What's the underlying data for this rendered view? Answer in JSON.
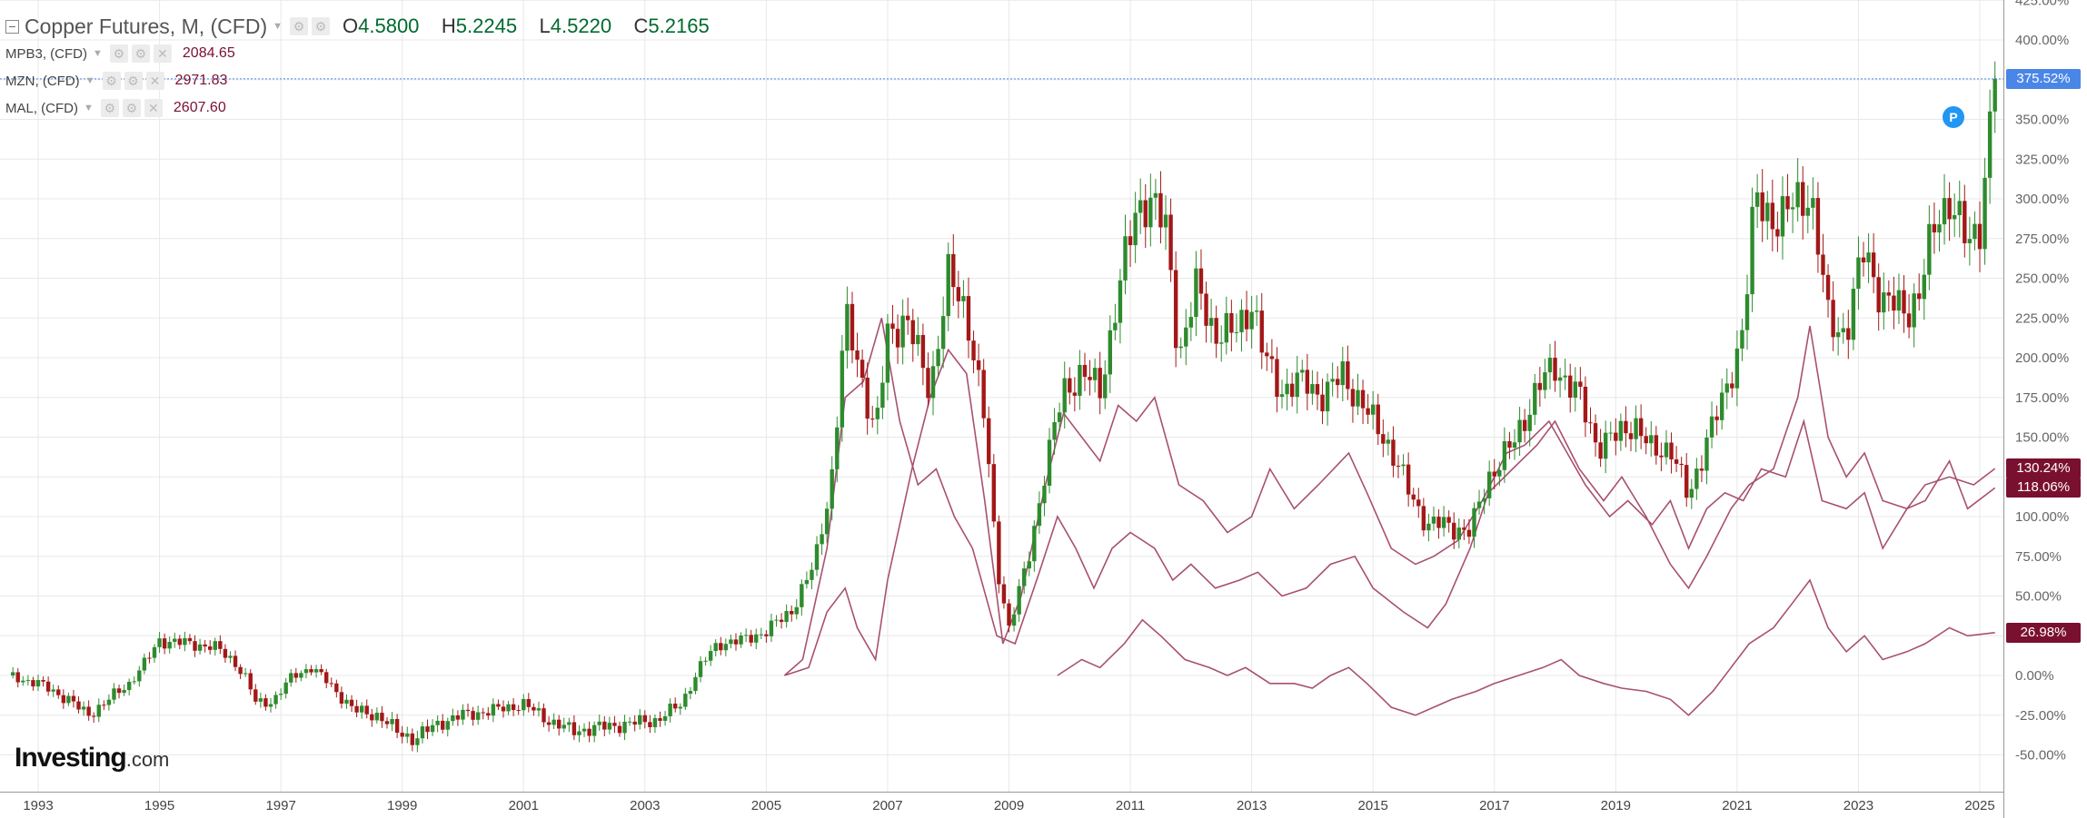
{
  "legend": {
    "main": {
      "symbol": "Copper Futures, M, (CFD)",
      "o_label": "O",
      "o": "4.5800",
      "h_label": "H",
      "h": "5.2245",
      "l_label": "L",
      "l": "4.5220",
      "c_label": "C",
      "c": "5.2165"
    },
    "series": [
      {
        "symbol": "MPB3, (CFD)",
        "value": "2084.65"
      },
      {
        "symbol": "MZN, (CFD)",
        "value": "2971.83"
      },
      {
        "symbol": "MAL, (CFD)",
        "value": "2607.60"
      }
    ]
  },
  "price_tags": [
    {
      "text": "375.52%",
      "value": 375.52,
      "color": "#4a86e8"
    },
    {
      "text": "130.24%",
      "value": 130.24,
      "color": "#7a1030"
    },
    {
      "text": "118.06%",
      "value": 118.06,
      "color": "#7a1030"
    },
    {
      "text": "26.98%",
      "value": 26.98,
      "color": "#7a1030"
    }
  ],
  "marker_label": "P",
  "logo": {
    "bold": "Investing",
    "suffix": ".com"
  },
  "colors": {
    "up": "#2e8b2e",
    "down": "#a31818",
    "compare_line": "#a85070",
    "grid": "#e8e8e8",
    "crosshair": "#4a86e8"
  },
  "chart_data": {
    "type": "candlestick with comparison lines",
    "y_unit": "percent change",
    "ylim": [
      -60,
      425
    ],
    "y_ticks": [
      -50,
      -25,
      0,
      25,
      50,
      75,
      100,
      125,
      150,
      175,
      200,
      225,
      250,
      275,
      300,
      325,
      350,
      375,
      400,
      425
    ],
    "x_ticks": [
      "1993",
      "1995",
      "1997",
      "1999",
      "2001",
      "2003",
      "2005",
      "2007",
      "2009",
      "2011",
      "2013",
      "2015",
      "2017",
      "2019",
      "2021",
      "2023",
      "2025"
    ],
    "grid": true,
    "main_series": {
      "name": "Copper Futures",
      "approx_close_percent": [
        [
          1992.5,
          0
        ],
        [
          1993.0,
          -5
        ],
        [
          1993.5,
          -15
        ],
        [
          1993.8,
          -25
        ],
        [
          1994.0,
          -20
        ],
        [
          1994.5,
          -5
        ],
        [
          1994.8,
          10
        ],
        [
          1995.0,
          22
        ],
        [
          1995.5,
          20
        ],
        [
          1995.9,
          18
        ],
        [
          1996.2,
          10
        ],
        [
          1996.4,
          0
        ],
        [
          1996.6,
          -18
        ],
        [
          1996.9,
          -15
        ],
        [
          1997.2,
          0
        ],
        [
          1997.5,
          5
        ],
        [
          1997.8,
          -5
        ],
        [
          1998.2,
          -22
        ],
        [
          1998.6,
          -25
        ],
        [
          1998.9,
          -35
        ],
        [
          1999.2,
          -40
        ],
        [
          1999.6,
          -30
        ],
        [
          2000.0,
          -25
        ],
        [
          2000.5,
          -22
        ],
        [
          2001.0,
          -18
        ],
        [
          2001.4,
          -28
        ],
        [
          2001.8,
          -35
        ],
        [
          2002.2,
          -33
        ],
        [
          2002.8,
          -30
        ],
        [
          2003.2,
          -28
        ],
        [
          2003.6,
          -18
        ],
        [
          2003.9,
          5
        ],
        [
          2004.2,
          20
        ],
        [
          2004.6,
          22
        ],
        [
          2005.0,
          28
        ],
        [
          2005.4,
          40
        ],
        [
          2005.8,
          70
        ],
        [
          2006.1,
          130
        ],
        [
          2006.3,
          225
        ],
        [
          2006.5,
          200
        ],
        [
          2006.8,
          150
        ],
        [
          2007.0,
          215
        ],
        [
          2007.3,
          225
        ],
        [
          2007.7,
          180
        ],
        [
          2008.0,
          250
        ],
        [
          2008.3,
          230
        ],
        [
          2008.6,
          160
        ],
        [
          2008.8,
          70
        ],
        [
          2009.0,
          30
        ],
        [
          2009.3,
          70
        ],
        [
          2009.6,
          130
        ],
        [
          2009.9,
          180
        ],
        [
          2010.2,
          190
        ],
        [
          2010.5,
          180
        ],
        [
          2010.8,
          240
        ],
        [
          2011.1,
          295
        ],
        [
          2011.3,
          300
        ],
        [
          2011.6,
          280
        ],
        [
          2011.8,
          200
        ],
        [
          2012.1,
          245
        ],
        [
          2012.4,
          215
        ],
        [
          2012.7,
          215
        ],
        [
          2013.0,
          235
        ],
        [
          2013.2,
          200
        ],
        [
          2013.5,
          180
        ],
        [
          2013.9,
          185
        ],
        [
          2014.2,
          175
        ],
        [
          2014.5,
          190
        ],
        [
          2014.9,
          165
        ],
        [
          2015.2,
          150
        ],
        [
          2015.6,
          115
        ],
        [
          2015.9,
          95
        ],
        [
          2016.2,
          95
        ],
        [
          2016.6,
          90
        ],
        [
          2016.9,
          125
        ],
        [
          2017.3,
          145
        ],
        [
          2017.7,
          180
        ],
        [
          2018.0,
          195
        ],
        [
          2018.4,
          175
        ],
        [
          2018.7,
          145
        ],
        [
          2019.0,
          150
        ],
        [
          2019.3,
          160
        ],
        [
          2019.6,
          140
        ],
        [
          2019.9,
          145
        ],
        [
          2020.2,
          110
        ],
        [
          2020.5,
          150
        ],
        [
          2020.8,
          175
        ],
        [
          2021.1,
          220
        ],
        [
          2021.3,
          300
        ],
        [
          2021.7,
          285
        ],
        [
          2022.0,
          300
        ],
        [
          2022.2,
          305
        ],
        [
          2022.5,
          225
        ],
        [
          2022.8,
          215
        ],
        [
          2023.1,
          270
        ],
        [
          2023.4,
          235
        ],
        [
          2023.8,
          230
        ],
        [
          2024.0,
          240
        ],
        [
          2024.3,
          290
        ],
        [
          2024.5,
          300
        ],
        [
          2024.8,
          270
        ],
        [
          2025.0,
          285
        ],
        [
          2025.25,
          375.52
        ]
      ]
    },
    "comparison_series": [
      {
        "name": "MPB3, (CFD)",
        "approx_percent": [
          [
            2005.3,
            0
          ],
          [
            2005.7,
            5
          ],
          [
            2006.0,
            40
          ],
          [
            2006.3,
            55
          ],
          [
            2006.5,
            30
          ],
          [
            2006.8,
            10
          ],
          [
            2007.0,
            60
          ],
          [
            2007.4,
            130
          ],
          [
            2007.7,
            175
          ],
          [
            2008.0,
            205
          ],
          [
            2008.3,
            190
          ],
          [
            2008.6,
            110
          ],
          [
            2008.9,
            20
          ],
          [
            2009.2,
            50
          ],
          [
            2009.6,
            120
          ],
          [
            2009.9,
            165
          ],
          [
            2010.2,
            150
          ],
          [
            2010.5,
            135
          ],
          [
            2010.8,
            170
          ],
          [
            2011.1,
            160
          ],
          [
            2011.4,
            175
          ],
          [
            2011.8,
            120
          ],
          [
            2012.2,
            110
          ],
          [
            2012.6,
            90
          ],
          [
            2013.0,
            100
          ],
          [
            2013.3,
            130
          ],
          [
            2013.7,
            105
          ],
          [
            2014.1,
            120
          ],
          [
            2014.6,
            140
          ],
          [
            2014.9,
            115
          ],
          [
            2015.3,
            80
          ],
          [
            2015.7,
            70
          ],
          [
            2016.0,
            75
          ],
          [
            2016.4,
            85
          ],
          [
            2016.8,
            110
          ],
          [
            2017.2,
            140
          ],
          [
            2017.5,
            145
          ],
          [
            2017.9,
            160
          ],
          [
            2018.2,
            140
          ],
          [
            2018.5,
            120
          ],
          [
            2018.9,
            100
          ],
          [
            2019.2,
            110
          ],
          [
            2019.6,
            95
          ],
          [
            2019.9,
            110
          ],
          [
            2020.2,
            80
          ],
          [
            2020.5,
            105
          ],
          [
            2020.8,
            115
          ],
          [
            2021.1,
            110
          ],
          [
            2021.4,
            130
          ],
          [
            2021.8,
            125
          ],
          [
            2022.1,
            160
          ],
          [
            2022.4,
            110
          ],
          [
            2022.8,
            105
          ],
          [
            2023.1,
            115
          ],
          [
            2023.4,
            80
          ],
          [
            2023.8,
            105
          ],
          [
            2024.1,
            110
          ],
          [
            2024.5,
            135
          ],
          [
            2024.8,
            105
          ],
          [
            2025.25,
            118.06
          ]
        ]
      },
      {
        "name": "MZN, (CFD)",
        "approx_percent": [
          [
            2005.3,
            0
          ],
          [
            2005.6,
            10
          ],
          [
            2006.0,
            80
          ],
          [
            2006.3,
            175
          ],
          [
            2006.6,
            185
          ],
          [
            2006.9,
            225
          ],
          [
            2007.2,
            160
          ],
          [
            2007.5,
            120
          ],
          [
            2007.8,
            130
          ],
          [
            2008.1,
            100
          ],
          [
            2008.4,
            80
          ],
          [
            2008.8,
            25
          ],
          [
            2009.1,
            20
          ],
          [
            2009.5,
            65
          ],
          [
            2009.8,
            100
          ],
          [
            2010.1,
            80
          ],
          [
            2010.4,
            55
          ],
          [
            2010.7,
            80
          ],
          [
            2011.0,
            90
          ],
          [
            2011.4,
            80
          ],
          [
            2011.7,
            60
          ],
          [
            2012.0,
            70
          ],
          [
            2012.4,
            55
          ],
          [
            2012.8,
            60
          ],
          [
            2013.1,
            65
          ],
          [
            2013.5,
            50
          ],
          [
            2013.9,
            55
          ],
          [
            2014.3,
            70
          ],
          [
            2014.7,
            75
          ],
          [
            2015.0,
            55
          ],
          [
            2015.5,
            40
          ],
          [
            2015.9,
            30
          ],
          [
            2016.2,
            45
          ],
          [
            2016.6,
            80
          ],
          [
            2016.9,
            115
          ],
          [
            2017.3,
            130
          ],
          [
            2017.7,
            145
          ],
          [
            2018.0,
            160
          ],
          [
            2018.4,
            130
          ],
          [
            2018.8,
            110
          ],
          [
            2019.1,
            125
          ],
          [
            2019.5,
            100
          ],
          [
            2019.9,
            70
          ],
          [
            2020.2,
            55
          ],
          [
            2020.5,
            75
          ],
          [
            2020.9,
            105
          ],
          [
            2021.2,
            120
          ],
          [
            2021.6,
            130
          ],
          [
            2022.0,
            175
          ],
          [
            2022.2,
            220
          ],
          [
            2022.5,
            150
          ],
          [
            2022.8,
            125
          ],
          [
            2023.1,
            140
          ],
          [
            2023.4,
            110
          ],
          [
            2023.8,
            105
          ],
          [
            2024.1,
            120
          ],
          [
            2024.5,
            125
          ],
          [
            2024.9,
            120
          ],
          [
            2025.25,
            130.24
          ]
        ]
      },
      {
        "name": "MAL, (CFD)",
        "approx_percent": [
          [
            2009.8,
            0
          ],
          [
            2010.2,
            10
          ],
          [
            2010.5,
            5
          ],
          [
            2010.9,
            20
          ],
          [
            2011.2,
            35
          ],
          [
            2011.5,
            25
          ],
          [
            2011.9,
            10
          ],
          [
            2012.3,
            5
          ],
          [
            2012.6,
            0
          ],
          [
            2012.9,
            5
          ],
          [
            2013.3,
            -5
          ],
          [
            2013.7,
            -5
          ],
          [
            2014.0,
            -8
          ],
          [
            2014.3,
            0
          ],
          [
            2014.6,
            5
          ],
          [
            2014.9,
            -5
          ],
          [
            2015.3,
            -20
          ],
          [
            2015.7,
            -25
          ],
          [
            2016.0,
            -20
          ],
          [
            2016.3,
            -15
          ],
          [
            2016.7,
            -10
          ],
          [
            2017.0,
            -5
          ],
          [
            2017.4,
            0
          ],
          [
            2017.8,
            5
          ],
          [
            2018.1,
            10
          ],
          [
            2018.4,
            0
          ],
          [
            2018.8,
            -5
          ],
          [
            2019.1,
            -8
          ],
          [
            2019.5,
            -10
          ],
          [
            2019.9,
            -15
          ],
          [
            2020.2,
            -25
          ],
          [
            2020.6,
            -10
          ],
          [
            2020.9,
            5
          ],
          [
            2021.2,
            20
          ],
          [
            2021.6,
            30
          ],
          [
            2021.9,
            45
          ],
          [
            2022.2,
            60
          ],
          [
            2022.5,
            30
          ],
          [
            2022.8,
            15
          ],
          [
            2023.1,
            25
          ],
          [
            2023.4,
            10
          ],
          [
            2023.8,
            15
          ],
          [
            2024.1,
            20
          ],
          [
            2024.5,
            30
          ],
          [
            2024.8,
            25
          ],
          [
            2025.25,
            26.98
          ]
        ]
      }
    ]
  }
}
